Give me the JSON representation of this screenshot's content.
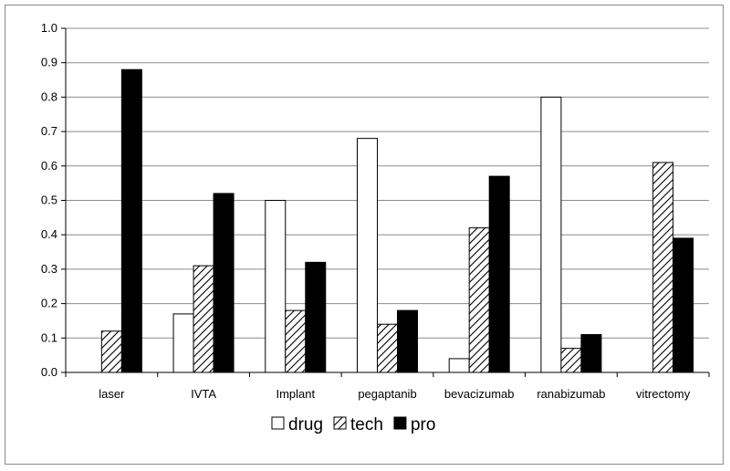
{
  "chart_data": {
    "type": "bar",
    "categories": [
      "laser",
      "IVTA",
      "Implant",
      "pegaptanib",
      "bevacizumab",
      "ranabizumab",
      "vitrectomy"
    ],
    "series": [
      {
        "name": "drug",
        "values": [
          0,
          0.17,
          0.5,
          0.68,
          0.04,
          0.8,
          0
        ],
        "fill": "white"
      },
      {
        "name": "tech",
        "values": [
          0.12,
          0.31,
          0.18,
          0.14,
          0.42,
          0.07,
          0.61
        ],
        "fill": "hatched"
      },
      {
        "name": "pro",
        "values": [
          0.88,
          0.52,
          0.32,
          0.18,
          0.57,
          0.11,
          0.39
        ],
        "fill": "black"
      }
    ],
    "ylim": [
      0,
      1.0
    ],
    "yticks": [
      "0.0",
      "0.1",
      "0.2",
      "0.3",
      "0.4",
      "0.5",
      "0.6",
      "0.7",
      "0.8",
      "0.9",
      "1.0"
    ],
    "grid": true,
    "legend_position": "bottom-center",
    "colors": {
      "bar_outline": "#000000",
      "gridline": "#8c8c8c",
      "frame": "#8c8c8c"
    }
  }
}
